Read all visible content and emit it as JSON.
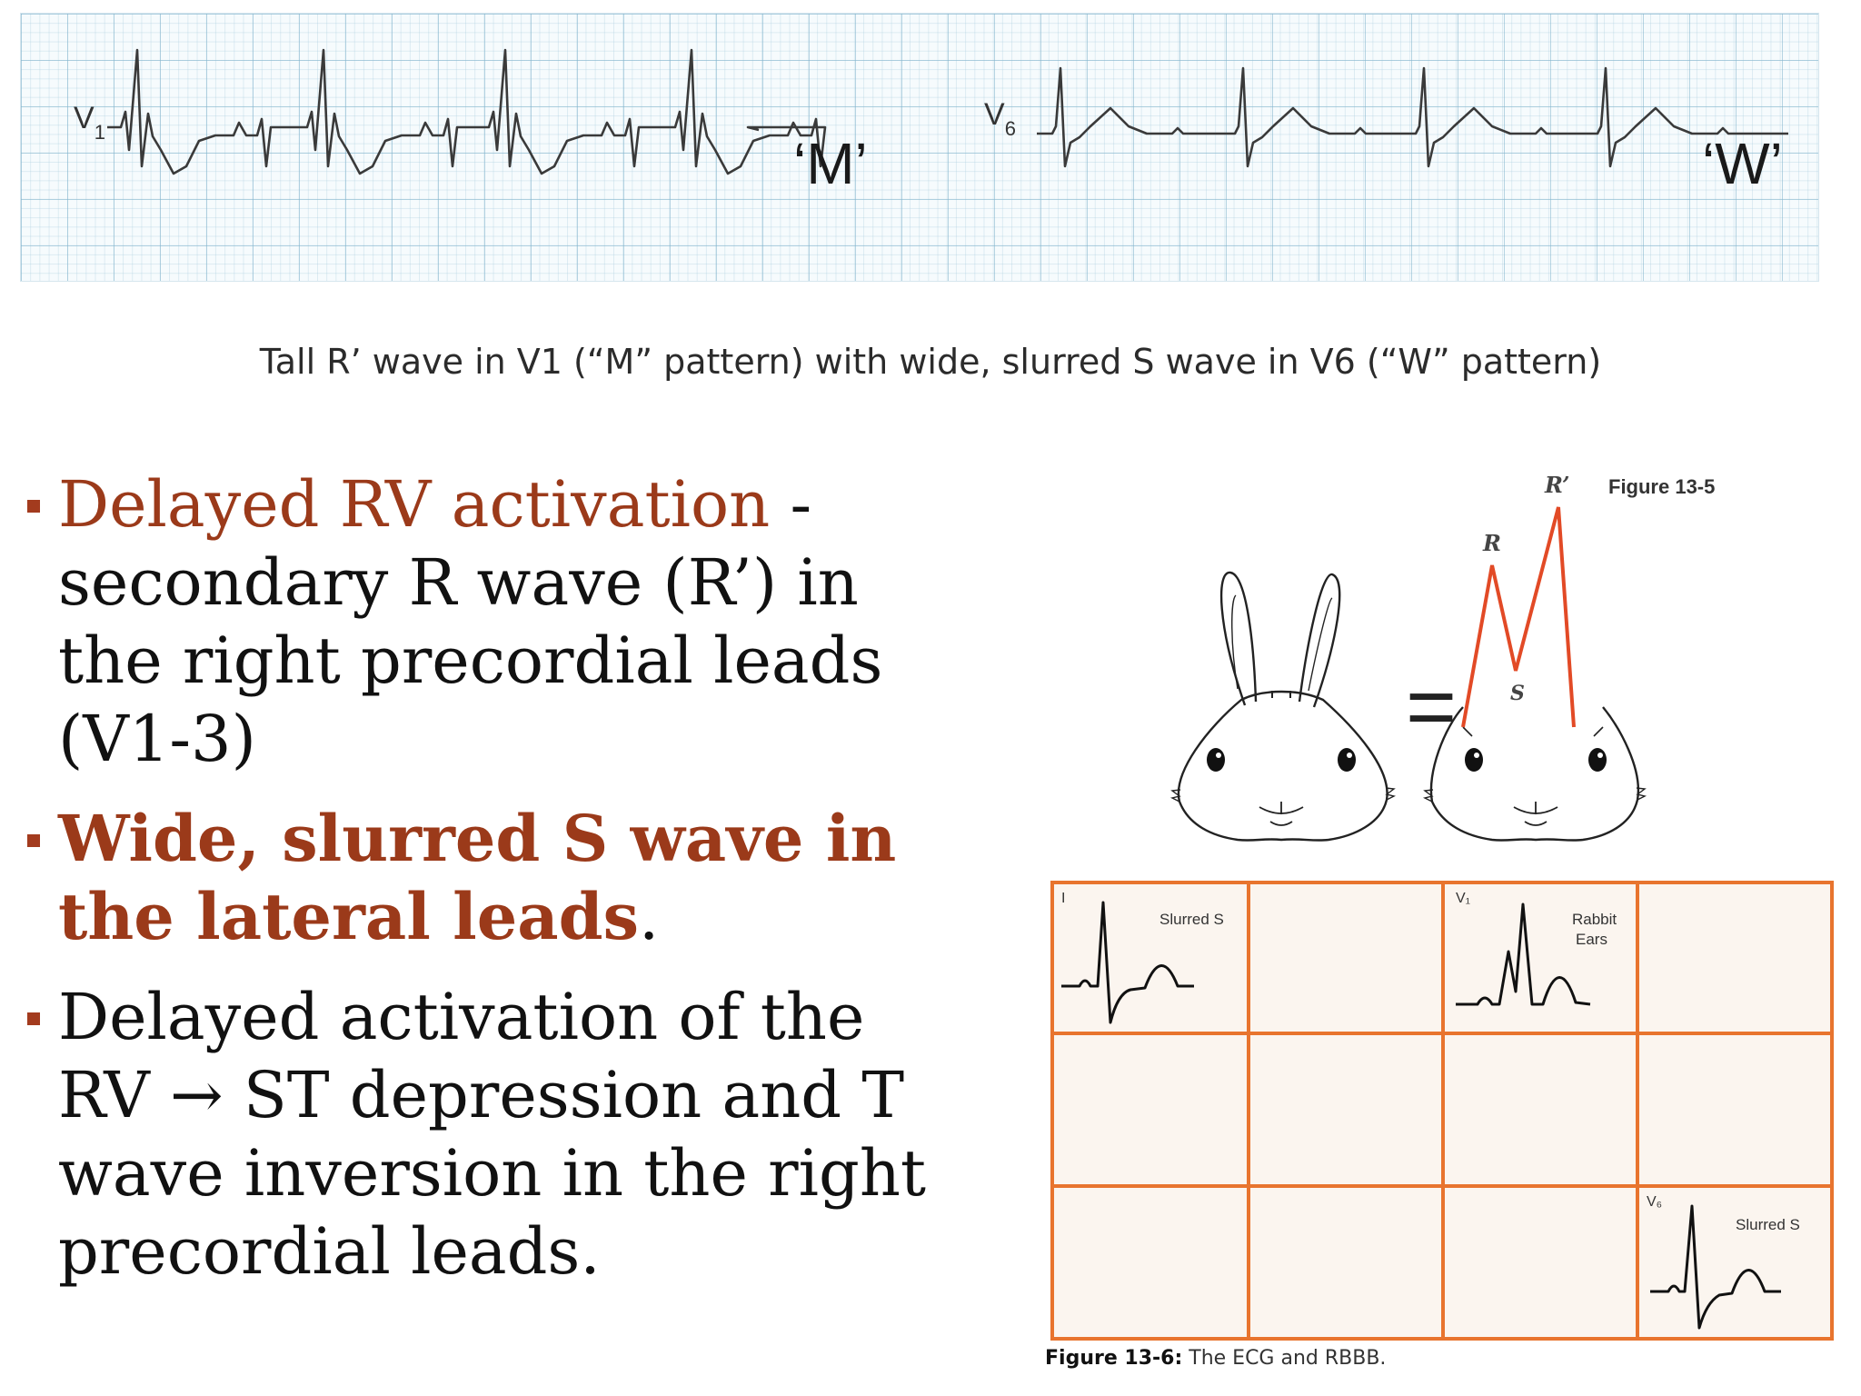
{
  "ecg_strip": {
    "lead_v1": {
      "letter": "V",
      "sub": "1"
    },
    "lead_v6": {
      "letter": "V",
      "sub": "6"
    },
    "pattern_m": "‘M’",
    "pattern_w": "‘W’",
    "trace_color": "#3a3a3a",
    "grid_color": "#a9cfe0"
  },
  "caption": "Tall R’ wave in V1 (“M” pattern) with wide, slurred S wave in V6 (“W” pattern)",
  "bullets": [
    {
      "accent": "Delayed RV activation",
      "rest": " - secondary R wave (R’) in the right precordial leads (V1-3)"
    },
    {
      "accent": "Wide, slurred S wave in the lateral leads",
      "rest": "."
    },
    {
      "text": "Delayed activation of the RV → ST depression and T wave inversion in the right precordial leads."
    }
  ],
  "rabbit_figure": {
    "title": "Figure 13-5",
    "label_r": "R",
    "label_r_prime": "R’",
    "label_s": "S",
    "equals": "=",
    "wave_color": "#e24a26"
  },
  "rbbb_figure": {
    "grid_color": "#e8742e",
    "background": "#fbf5ef",
    "cell_lead_i": "I",
    "cell_lead_i_note": "Slurred S",
    "cell_lead_v1": "V₁",
    "cell_lead_v1_note_1": "Rabbit",
    "cell_lead_v1_note_2": "Ears",
    "cell_lead_v6": "V₆",
    "cell_lead_v6_note": "Slurred S",
    "caption_label": "Figure 13-6:",
    "caption_text": " The ECG and RBBB."
  }
}
